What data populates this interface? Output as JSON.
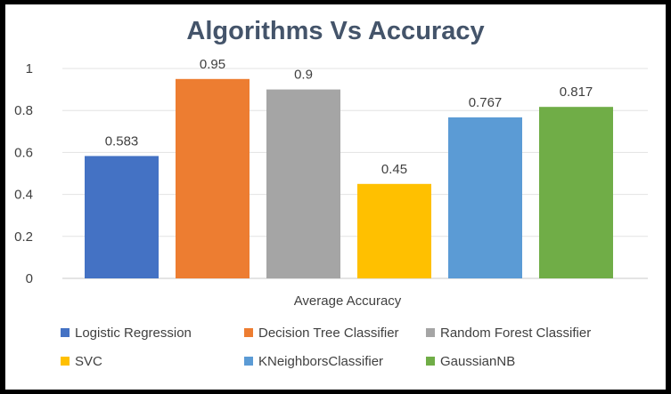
{
  "chart_data": {
    "type": "bar",
    "title": "Algorithms Vs Accuracy",
    "xlabel": "Average Accuracy",
    "ylabel": "",
    "ylim": [
      0,
      1
    ],
    "yticks": [
      "0",
      "0.2",
      "0.4",
      "0.6",
      "0.8",
      "1"
    ],
    "grid": true,
    "legend_position": "bottom",
    "series": [
      {
        "name": "Logistic Regression",
        "value": 0.583,
        "label": "0.583",
        "color": "#4472c4"
      },
      {
        "name": "Decision Tree Classifier",
        "value": 0.95,
        "label": "0.95",
        "color": "#ed7d31"
      },
      {
        "name": "Random Forest Classifier",
        "value": 0.9,
        "label": "0.9",
        "color": "#a5a5a5"
      },
      {
        "name": "SVC",
        "value": 0.45,
        "label": "0.45",
        "color": "#ffc000"
      },
      {
        "name": "KNeighborsClassifier",
        "value": 0.767,
        "label": "0.767",
        "color": "#5b9bd5"
      },
      {
        "name": "GaussianNB",
        "value": 0.817,
        "label": "0.817",
        "color": "#70ad47"
      }
    ]
  }
}
